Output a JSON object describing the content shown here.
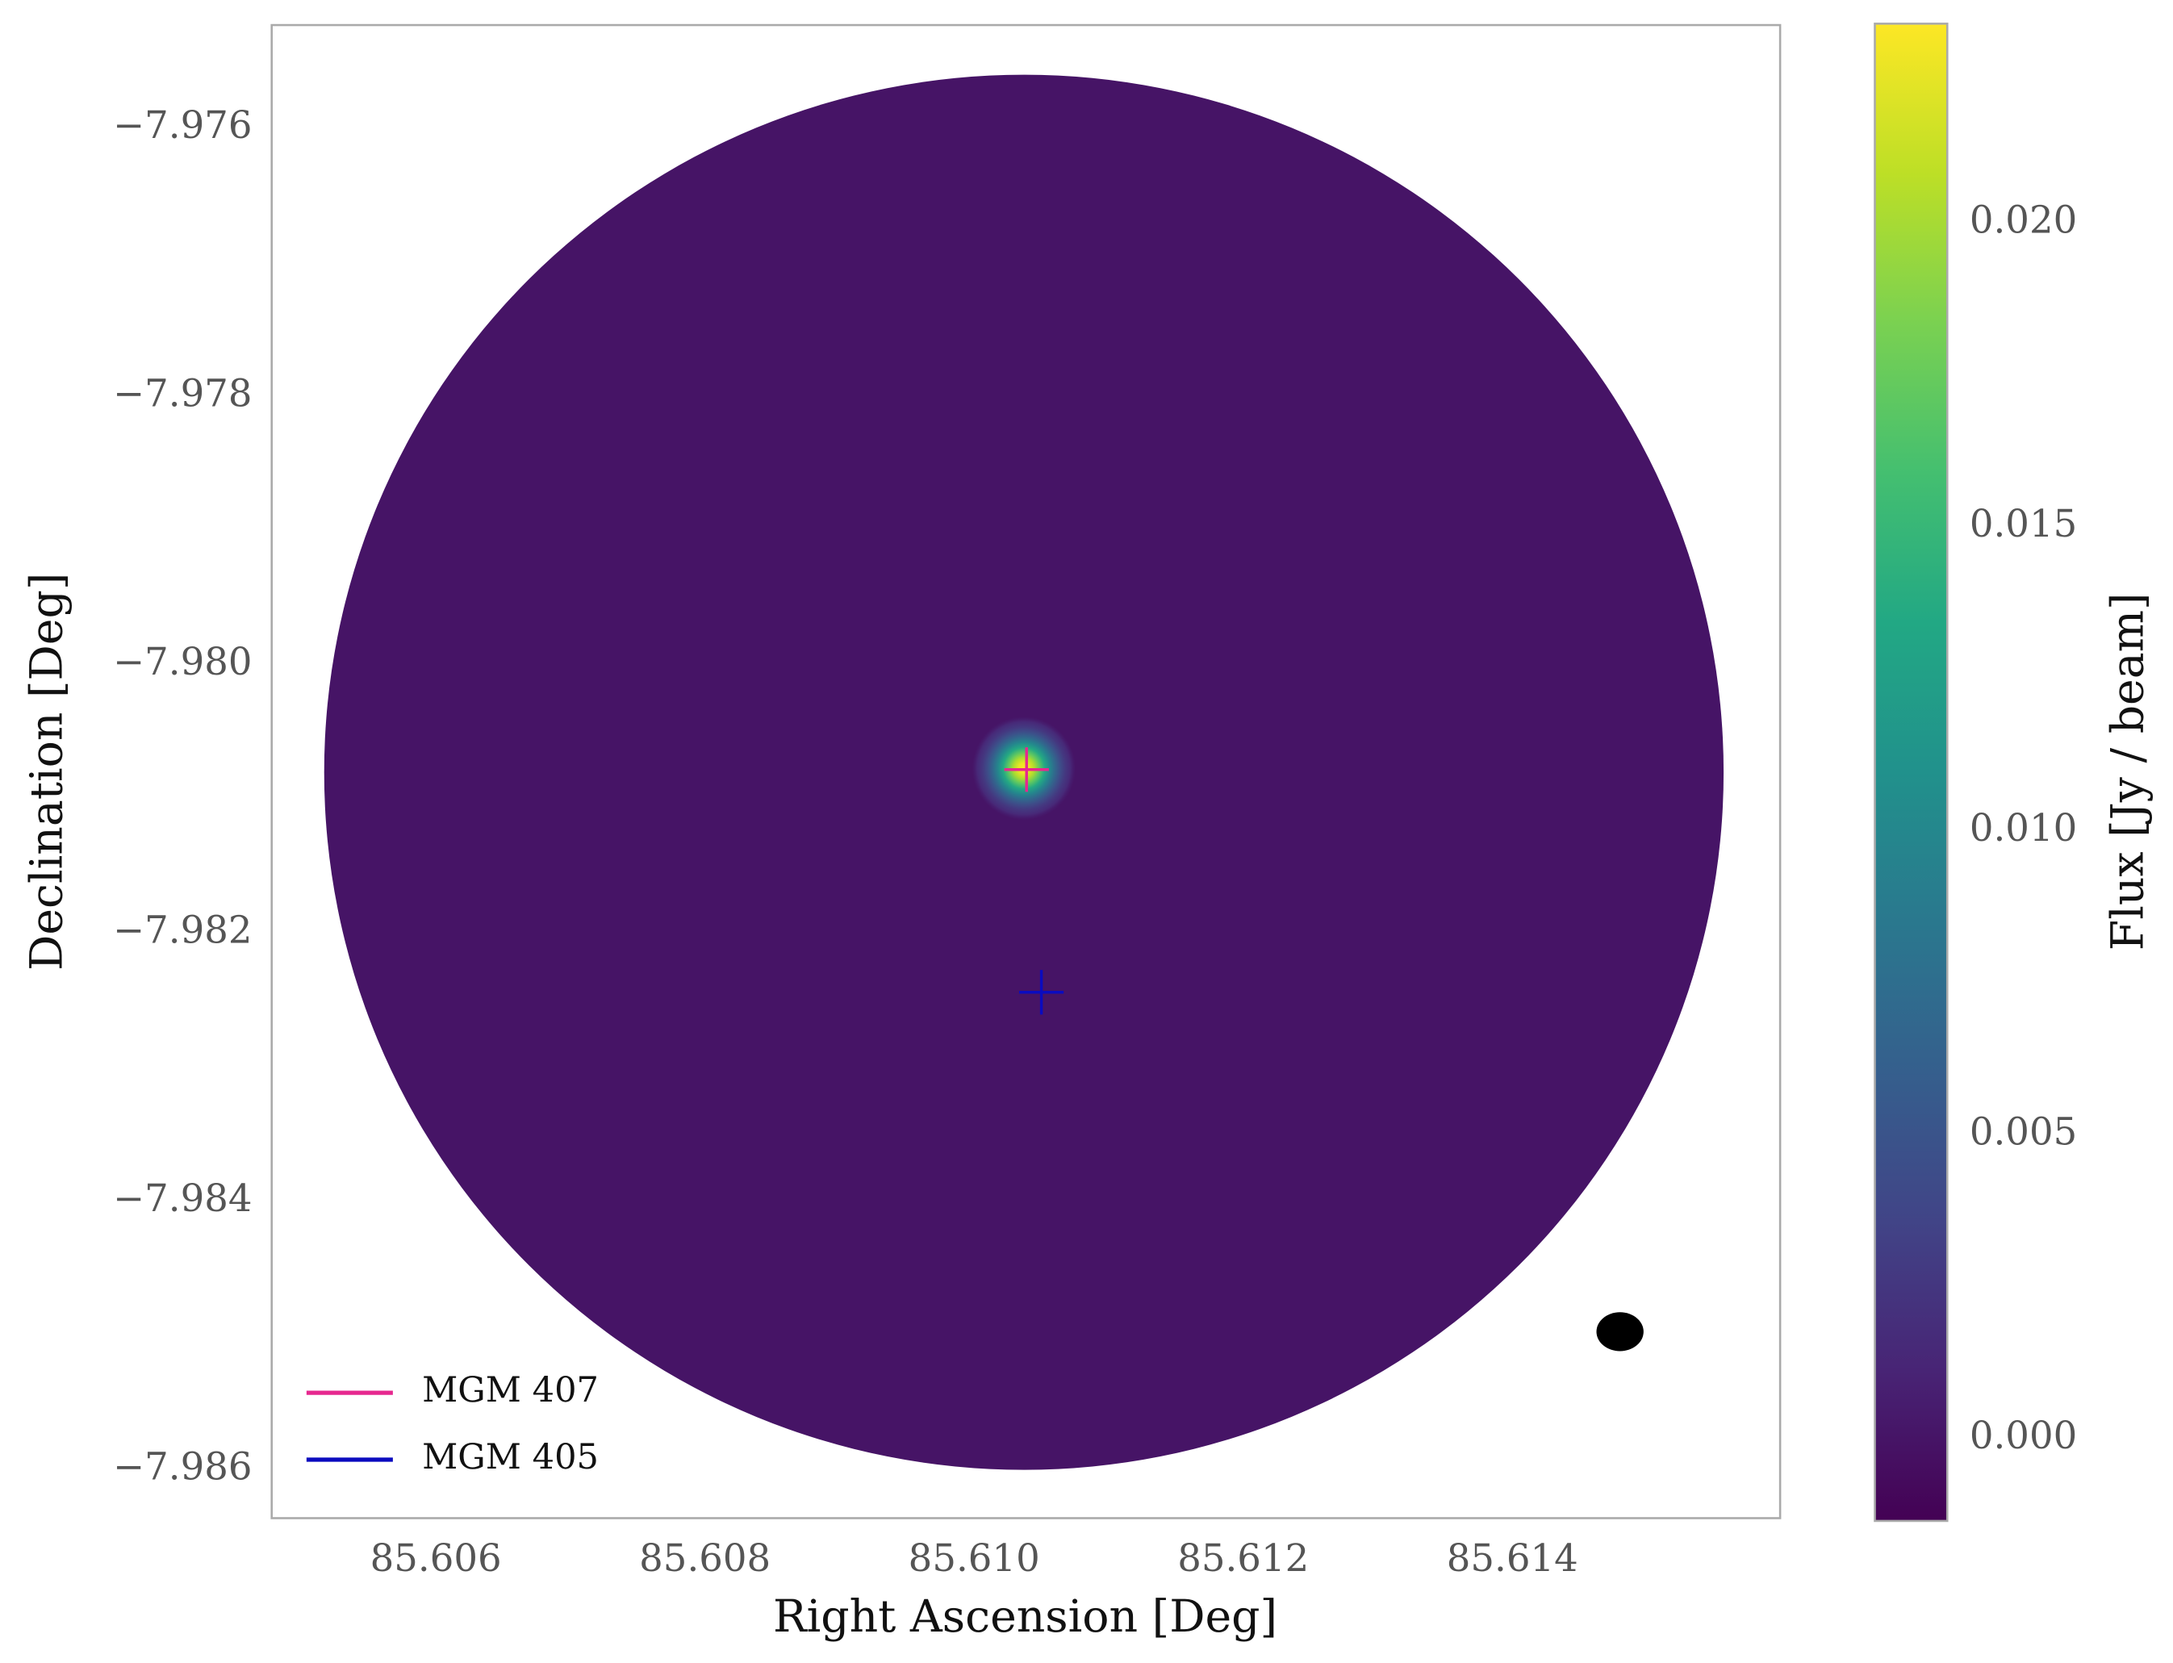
{
  "chart_data": {
    "type": "image",
    "xlabel": "Right Ascension [Deg]",
    "ylabel": "Declination [Deg]",
    "colorbar_label": "Flux [Jy / beam]",
    "colormap": "viridis",
    "xlim": [
      85.60478,
      85.61599
    ],
    "ylim": [
      -7.98636,
      -7.97523
    ],
    "xticks": [
      85.606,
      85.608,
      {
        "value": 85.61,
        "label": "85.610"
      },
      85.612,
      85.614
    ],
    "yticks": [
      {
        "value": -7.986,
        "label": "−7.986"
      },
      {
        "value": -7.984,
        "label": "−7.984"
      },
      {
        "value": -7.982,
        "label": "−7.982"
      },
      {
        "value": -7.98,
        "label": "−7.980"
      },
      {
        "value": -7.978,
        "label": "−7.978"
      },
      {
        "value": -7.976,
        "label": "−7.976"
      }
    ],
    "clim": [
      -0.00135,
      0.02328
    ],
    "cticks": [
      {
        "value": 0,
        "label": "0.000"
      },
      0.005,
      {
        "value": 0.01,
        "label": "0.010"
      },
      0.015,
      {
        "value": 0.02,
        "label": "0.020"
      }
    ],
    "field": {
      "x": 85.61037,
      "y": -7.9808,
      "radius": 0.0052,
      "background": 0
    },
    "source": {
      "x": 85.61037,
      "y": -7.98077,
      "peak": 0.0233
    },
    "beam": {
      "x": 85.6148,
      "y": -7.98497,
      "width": 0.00035,
      "height": 0.00029
    },
    "series": [
      {
        "name": "MGM 407",
        "color": "#e6288f",
        "x": [
          85.61039
        ],
        "y": [
          -7.98078
        ]
      },
      {
        "name": "MGM 405",
        "color": "#0b0bbf",
        "x": [
          85.6105
        ],
        "y": [
          -7.98244
        ]
      }
    ],
    "legend": "lower left",
    "grid": false
  }
}
